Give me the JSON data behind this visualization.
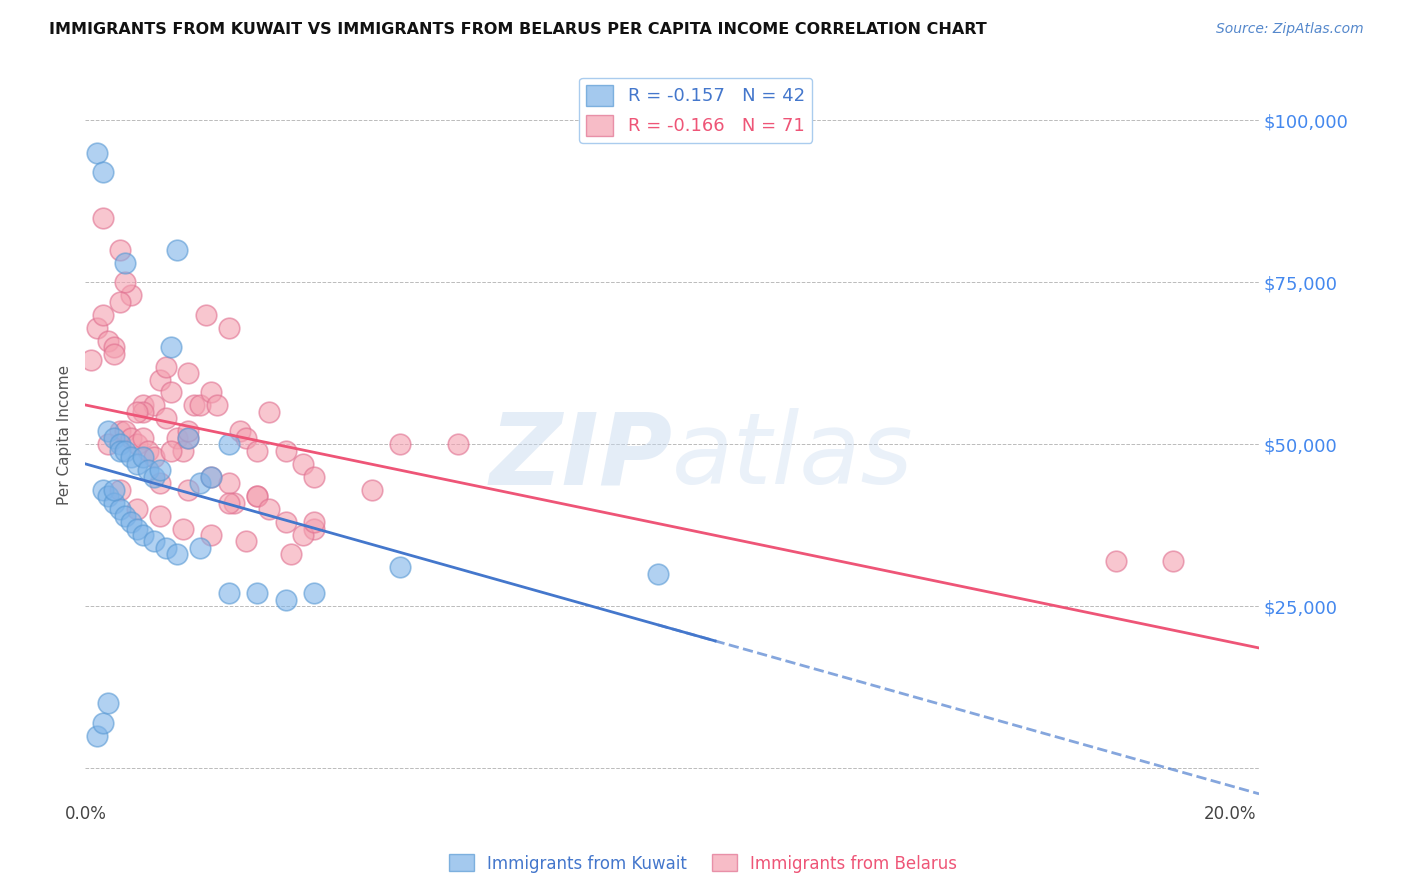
{
  "title": "IMMIGRANTS FROM KUWAIT VS IMMIGRANTS FROM BELARUS PER CAPITA INCOME CORRELATION CHART",
  "source": "Source: ZipAtlas.com",
  "ylabel": "Per Capita Income",
  "y_ticks": [
    0,
    25000,
    50000,
    75000,
    100000
  ],
  "y_tick_labels": [
    "",
    "$25,000",
    "$50,000",
    "$75,000",
    "$100,000"
  ],
  "x_ticks": [
    0.0,
    0.04,
    0.08,
    0.12,
    0.16,
    0.2
  ],
  "xlim": [
    0.0,
    0.205
  ],
  "ylim": [
    -5000,
    108000
  ],
  "kuwait_color": "#7EB3E8",
  "kuwait_edge": "#5A9AD4",
  "belarus_color": "#F4A0B0",
  "belarus_edge": "#E07090",
  "kuwait_line_color": "#4477CC",
  "belarus_line_color": "#EE5577",
  "kuwait_R": -0.157,
  "kuwait_N": 42,
  "belarus_R": -0.166,
  "belarus_N": 71,
  "legend_label_kuwait": "R = -0.157   N = 42",
  "legend_label_belarus": "R = -0.166   N = 71",
  "legend_text_kuwait": "Immigrants from Kuwait",
  "legend_text_belarus": "Immigrants from Belarus",
  "kuwait_x": [
    0.002,
    0.003,
    0.004,
    0.005,
    0.006,
    0.006,
    0.007,
    0.008,
    0.009,
    0.01,
    0.011,
    0.012,
    0.013,
    0.015,
    0.016,
    0.018,
    0.02,
    0.022,
    0.025,
    0.03,
    0.035,
    0.003,
    0.004,
    0.005,
    0.006,
    0.007,
    0.008,
    0.009,
    0.01,
    0.012,
    0.014,
    0.016,
    0.02,
    0.025,
    0.055,
    0.1,
    0.002,
    0.003,
    0.004,
    0.005,
    0.007,
    0.04
  ],
  "kuwait_y": [
    95000,
    92000,
    52000,
    51000,
    50000,
    49000,
    49000,
    48000,
    47000,
    48000,
    46000,
    45000,
    46000,
    65000,
    80000,
    51000,
    44000,
    45000,
    50000,
    27000,
    26000,
    43000,
    42000,
    41000,
    40000,
    39000,
    38000,
    37000,
    36000,
    35000,
    34000,
    33000,
    34000,
    27000,
    31000,
    30000,
    5000,
    7000,
    10000,
    43000,
    78000,
    27000
  ],
  "belarus_x": [
    0.001,
    0.002,
    0.003,
    0.004,
    0.005,
    0.006,
    0.007,
    0.008,
    0.009,
    0.01,
    0.011,
    0.012,
    0.013,
    0.014,
    0.015,
    0.016,
    0.017,
    0.018,
    0.019,
    0.02,
    0.021,
    0.022,
    0.023,
    0.025,
    0.027,
    0.028,
    0.03,
    0.032,
    0.035,
    0.038,
    0.04,
    0.05,
    0.003,
    0.005,
    0.006,
    0.008,
    0.01,
    0.012,
    0.015,
    0.018,
    0.022,
    0.026,
    0.03,
    0.035,
    0.04,
    0.004,
    0.006,
    0.009,
    0.013,
    0.017,
    0.022,
    0.028,
    0.036,
    0.007,
    0.01,
    0.014,
    0.018,
    0.025,
    0.03,
    0.038,
    0.006,
    0.009,
    0.013,
    0.018,
    0.025,
    0.032,
    0.04,
    0.055,
    0.065,
    0.18,
    0.19
  ],
  "belarus_y": [
    63000,
    68000,
    70000,
    66000,
    65000,
    52000,
    52000,
    51000,
    50000,
    51000,
    49000,
    48000,
    60000,
    62000,
    58000,
    51000,
    49000,
    61000,
    56000,
    56000,
    70000,
    58000,
    56000,
    68000,
    52000,
    51000,
    49000,
    55000,
    49000,
    47000,
    45000,
    43000,
    85000,
    64000,
    80000,
    73000,
    56000,
    56000,
    49000,
    51000,
    45000,
    41000,
    42000,
    38000,
    37000,
    50000,
    43000,
    40000,
    39000,
    37000,
    36000,
    35000,
    33000,
    75000,
    55000,
    54000,
    52000,
    44000,
    42000,
    36000,
    72000,
    55000,
    44000,
    43000,
    41000,
    40000,
    38000,
    50000,
    50000,
    32000,
    32000
  ]
}
